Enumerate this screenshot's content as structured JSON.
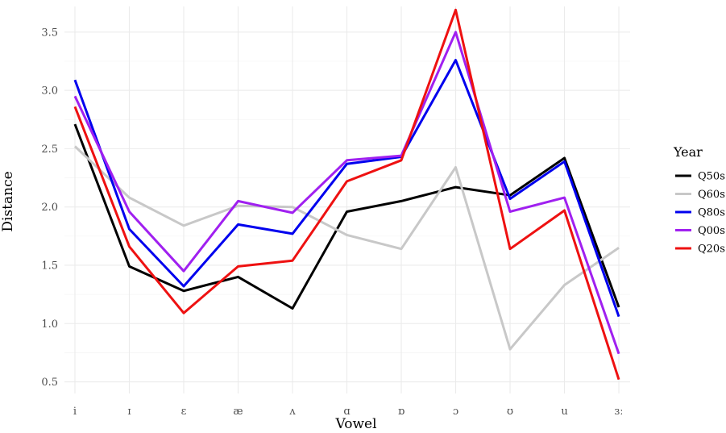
{
  "chart_data": {
    "type": "line",
    "title": "",
    "xlabel": "Vowel",
    "ylabel": "Distance",
    "categories": [
      "i",
      "ɪ",
      "ɛ",
      "æ",
      "ʌ",
      "ɑ",
      "ɒ",
      "ɔ",
      "ʊ",
      "u",
      "ɜː"
    ],
    "ylim": [
      0.4,
      3.72
    ],
    "yticks": [
      0.5,
      1.0,
      1.5,
      2.0,
      2.5,
      3.0,
      3.5
    ],
    "ytick_labels": [
      "0.5",
      "1.0",
      "1.5",
      "2.0",
      "2.5",
      "3.0",
      "3.5"
    ],
    "grid": true,
    "legend": {
      "title": "Year",
      "position": "right"
    },
    "series": [
      {
        "name": "Q50s",
        "color": "#000000",
        "values": [
          2.71,
          1.49,
          1.28,
          1.4,
          1.13,
          1.96,
          2.05,
          2.17,
          2.1,
          2.42,
          1.14
        ]
      },
      {
        "name": "Q60s",
        "color": "#c8c8c8",
        "values": [
          2.52,
          2.08,
          1.84,
          2.01,
          2.0,
          1.76,
          1.64,
          2.34,
          0.78,
          1.33,
          1.65
        ]
      },
      {
        "name": "Q80s",
        "color": "#0000ee",
        "values": [
          3.09,
          1.81,
          1.32,
          1.85,
          1.77,
          2.37,
          2.43,
          3.26,
          2.07,
          2.39,
          1.06
        ]
      },
      {
        "name": "Q00s",
        "color": "#a020f0",
        "values": [
          2.95,
          1.96,
          1.45,
          2.05,
          1.95,
          2.4,
          2.44,
          3.5,
          1.96,
          2.08,
          0.74
        ]
      },
      {
        "name": "Q20s",
        "color": "#ee1111",
        "values": [
          2.86,
          1.66,
          1.09,
          1.49,
          1.54,
          2.22,
          2.4,
          3.69,
          1.64,
          1.97,
          0.52
        ]
      }
    ]
  }
}
